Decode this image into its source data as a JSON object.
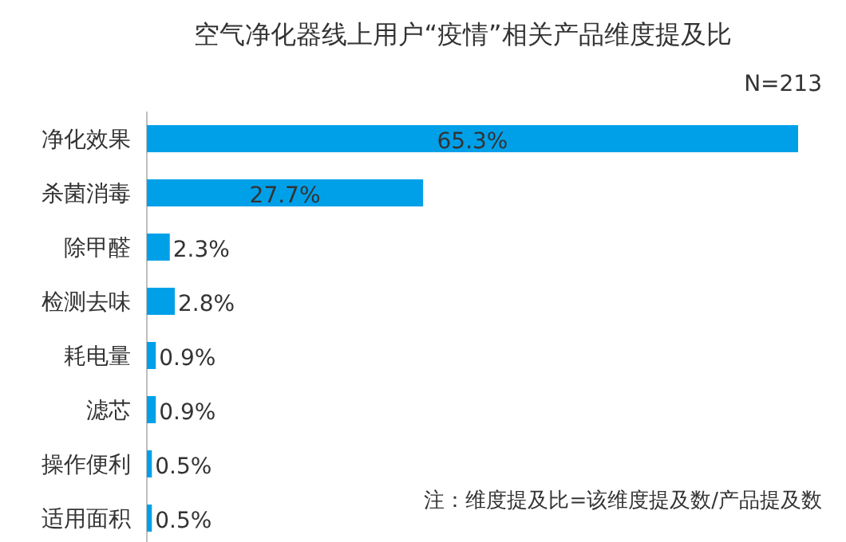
{
  "chart_data": {
    "type": "bar",
    "orientation": "horizontal",
    "title": "空气净化器线上用户“疫情”相关产品维度提及比",
    "subtitle": "N=213",
    "categories": [
      "净化效果",
      "杀菌消毒",
      "除甲醛",
      "检测去味",
      "耗电量",
      "滤芯",
      "操作便利",
      "适用面积"
    ],
    "values": [
      65.3,
      27.7,
      2.3,
      2.8,
      0.9,
      0.9,
      0.5,
      0.5
    ],
    "value_labels": [
      "65.3%",
      "27.7%",
      "2.3%",
      "2.8%",
      "0.9%",
      "0.9%",
      "0.5%",
      "0.5%"
    ],
    "color": "#00a0e9",
    "annotations": [
      "注：维度提及比=该维度提及数/产品提及数"
    ]
  }
}
